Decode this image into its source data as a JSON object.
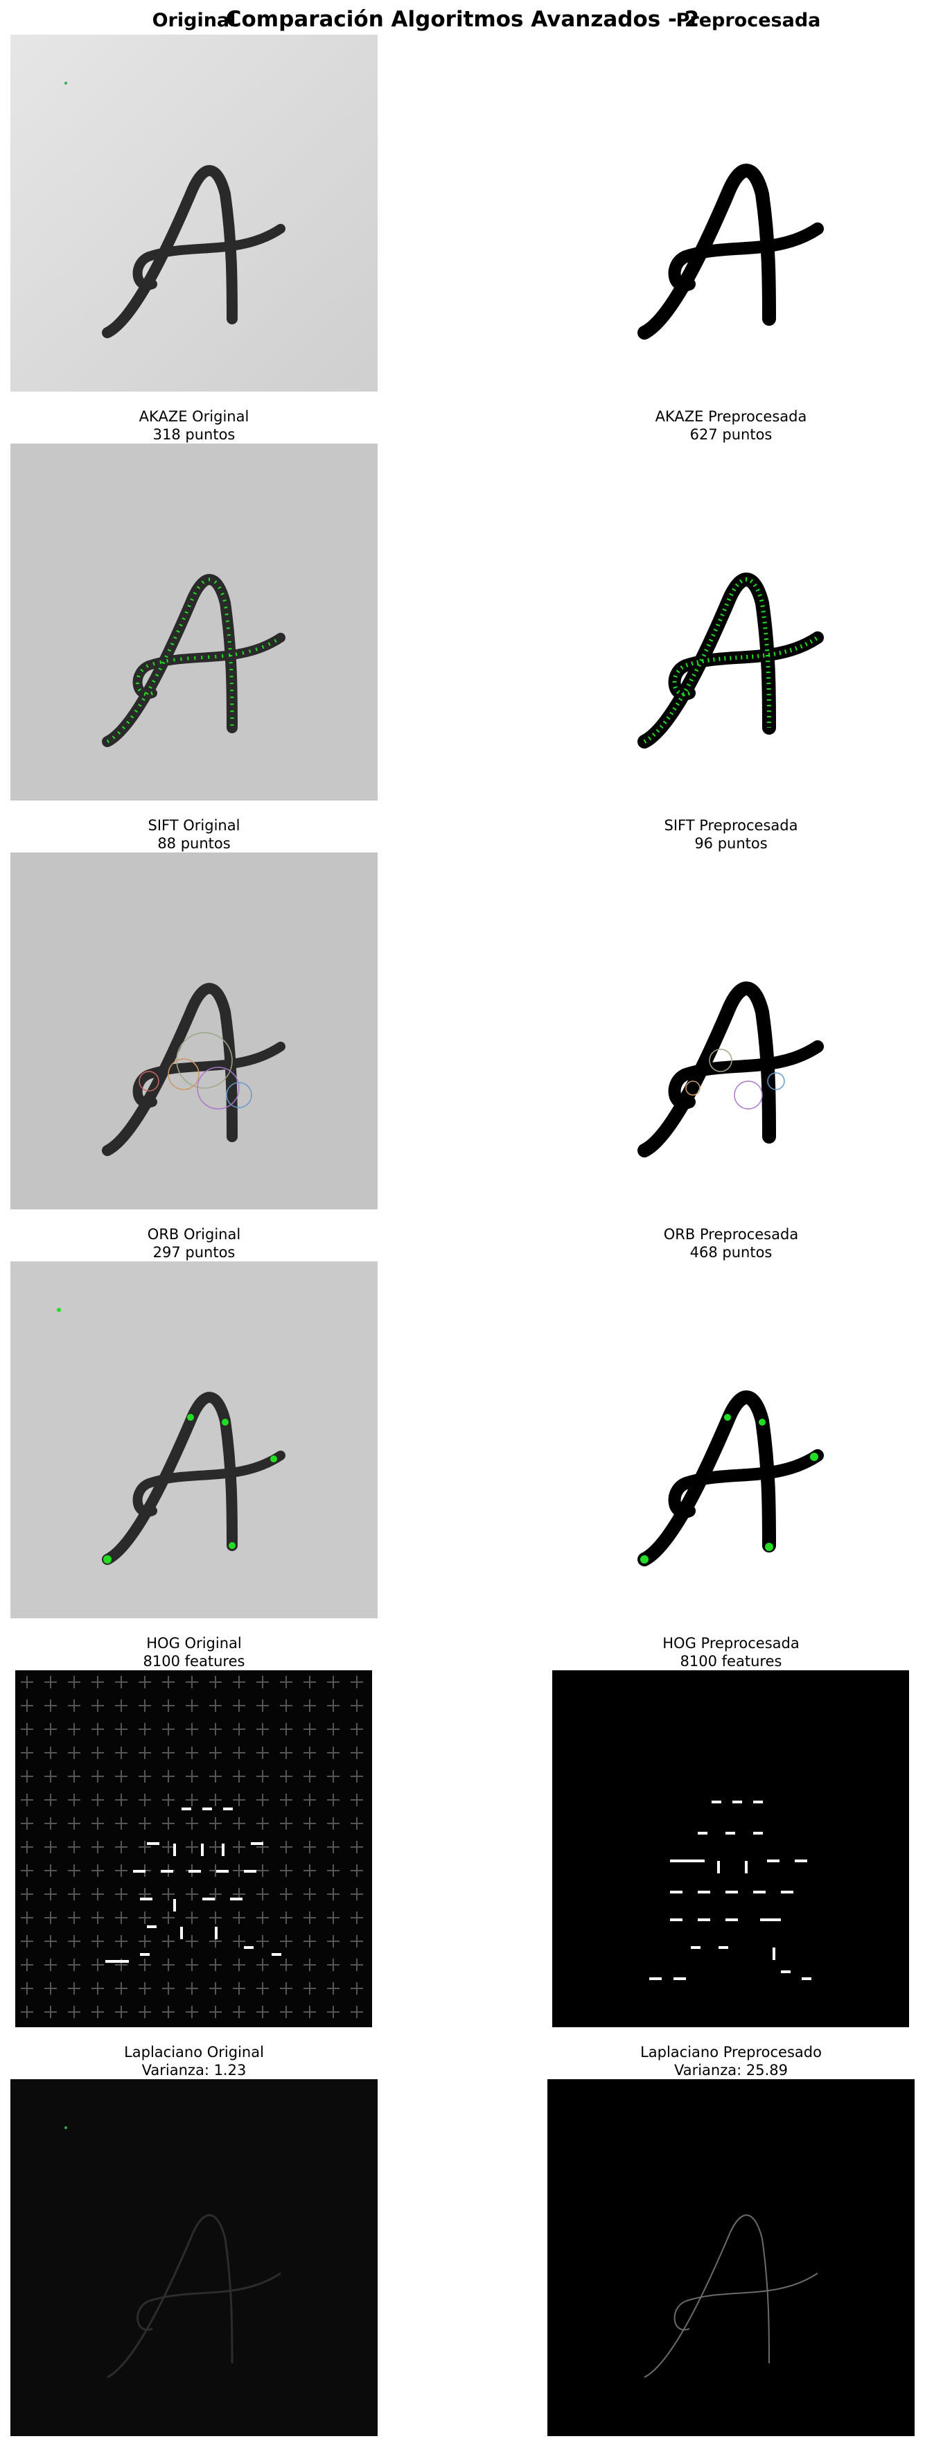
{
  "figure": {
    "title": "Comparación Algoritmos Avanzados - 2",
    "left_header": "Original",
    "right_header": "Preprocesada"
  },
  "rows": [
    {
      "name": "akaze",
      "left": {
        "title": "AKAZE Original",
        "subtitle": "318 puntos"
      },
      "right": {
        "title": "AKAZE Preprocesada",
        "subtitle": "627 puntos"
      }
    },
    {
      "name": "sift",
      "left": {
        "title": "SIFT Original",
        "subtitle": "88 puntos"
      },
      "right": {
        "title": "SIFT Preprocesada",
        "subtitle": "96 puntos"
      }
    },
    {
      "name": "orb",
      "left": {
        "title": "ORB Original",
        "subtitle": "297 puntos"
      },
      "right": {
        "title": "ORB Preprocesada",
        "subtitle": "468 puntos"
      }
    },
    {
      "name": "hog",
      "left": {
        "title": "HOG Original",
        "subtitle": "8100 features"
      },
      "right": {
        "title": "HOG Preprocesada",
        "subtitle": "8100 features"
      }
    },
    {
      "name": "laplaciano",
      "left": {
        "title": "Laplaciano Original",
        "subtitle": "Varianza: 1.23"
      },
      "right": {
        "title": "Laplaciano Preprocesado",
        "subtitle": "Varianza: 25.89"
      }
    }
  ],
  "colors": {
    "keypoint_green": "#22dd22",
    "paper_gray": "#c9c9c9",
    "ink": "#1a1a1a"
  }
}
